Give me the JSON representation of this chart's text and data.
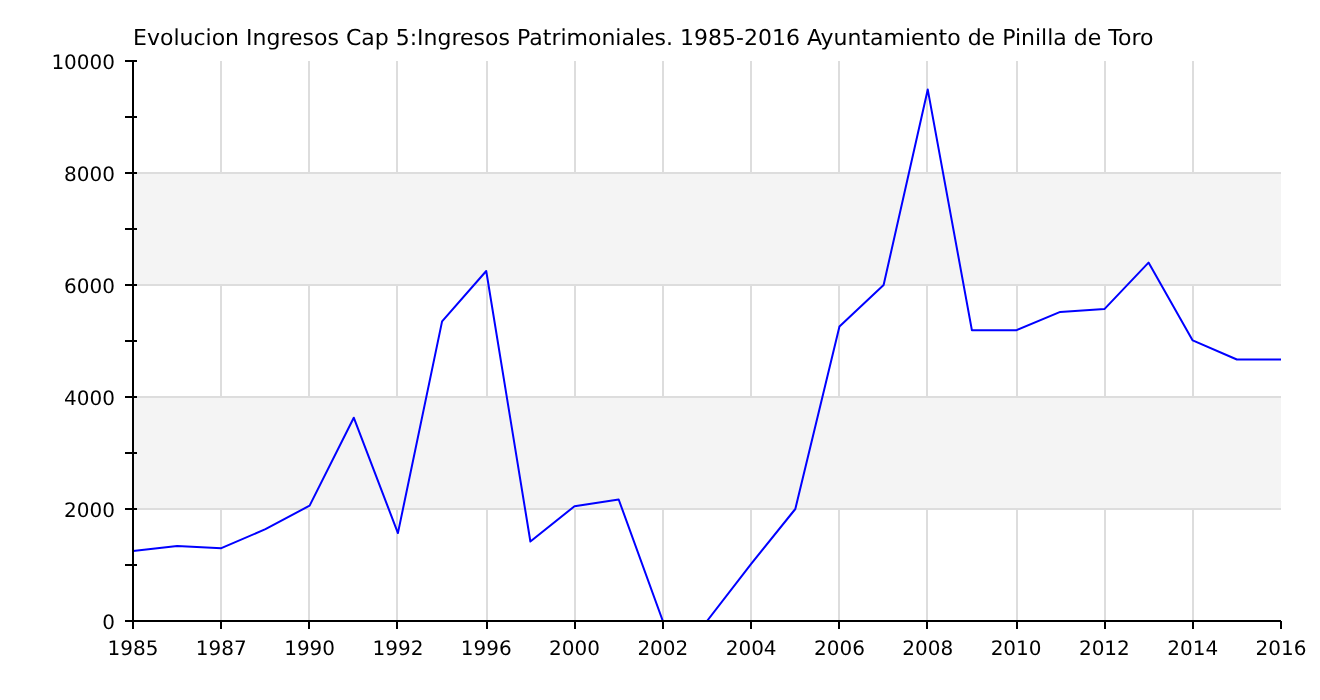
{
  "chart_data": {
    "type": "line",
    "title": "Evolucion Ingresos Cap 5:Ingresos Patrimoniales. 1985-2016 Ayuntamiento de Pinilla de Toro",
    "categories": [
      "1985",
      null,
      "1987",
      null,
      "1990",
      null,
      "1992",
      null,
      "1996",
      null,
      "2000",
      null,
      "2002",
      null,
      "2004",
      null,
      "2006",
      null,
      "2008",
      null,
      "2010",
      null,
      "2012",
      null,
      "2014",
      null,
      "2016"
    ],
    "series": [
      {
        "color": "#0000ff",
        "values": [
          1250,
          1340,
          1300,
          1640,
          2060,
          3630,
          1570,
          5350,
          6250,
          1420,
          2050,
          2170,
          0,
          0,
          1020,
          2000,
          5260,
          6000,
          9490,
          5190,
          5190,
          5520,
          5570,
          6400,
          5010,
          4670,
          4670
        ]
      }
    ],
    "ylim": [
      0,
      10000
    ],
    "yticks": [
      0,
      {
        "value": 1000,
        "label": null
      },
      2000,
      {
        "value": 3000,
        "label": null
      },
      4000,
      {
        "value": 5000,
        "label": null
      },
      6000,
      {
        "value": 7000,
        "label": null
      },
      8000,
      {
        "value": 9000,
        "label": null
      },
      10000
    ],
    "grid": true,
    "marker": "none",
    "line_style": "solid"
  }
}
